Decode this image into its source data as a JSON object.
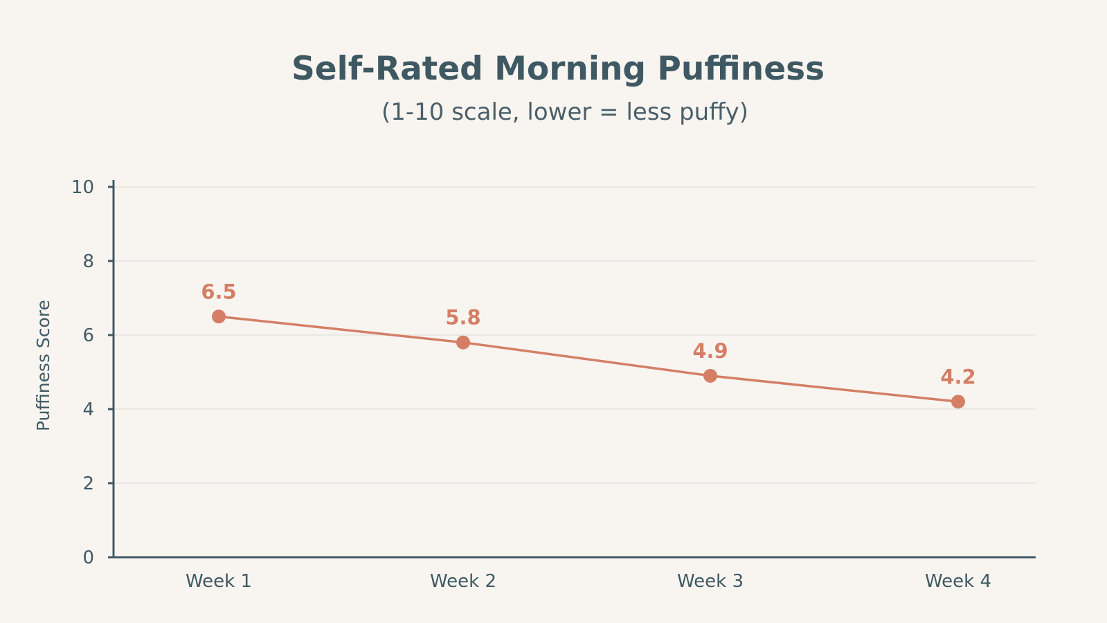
{
  "colors": {
    "background": "#f8f5f1",
    "text": "#3f5963",
    "series": "#d47f65",
    "grid": "#e6e3df"
  },
  "chart_data": {
    "type": "line",
    "title": "Self-Rated Morning Puffiness",
    "subtitle": "(1-10 scale, lower = less puffy)",
    "xlabel": "",
    "ylabel": "Puffiness Score",
    "categories": [
      "Week 1",
      "Week 2",
      "Week 3",
      "Week 4"
    ],
    "series": [
      {
        "values": [
          6.5,
          5.8,
          4.9,
          4.2
        ],
        "labels": [
          "6.5",
          "5.8",
          "4.9",
          "4.2"
        ]
      }
    ],
    "ylim": [
      0,
      10
    ],
    "yticks": [
      0,
      2,
      4,
      6,
      8,
      10
    ],
    "grid": true,
    "legend": "none"
  }
}
